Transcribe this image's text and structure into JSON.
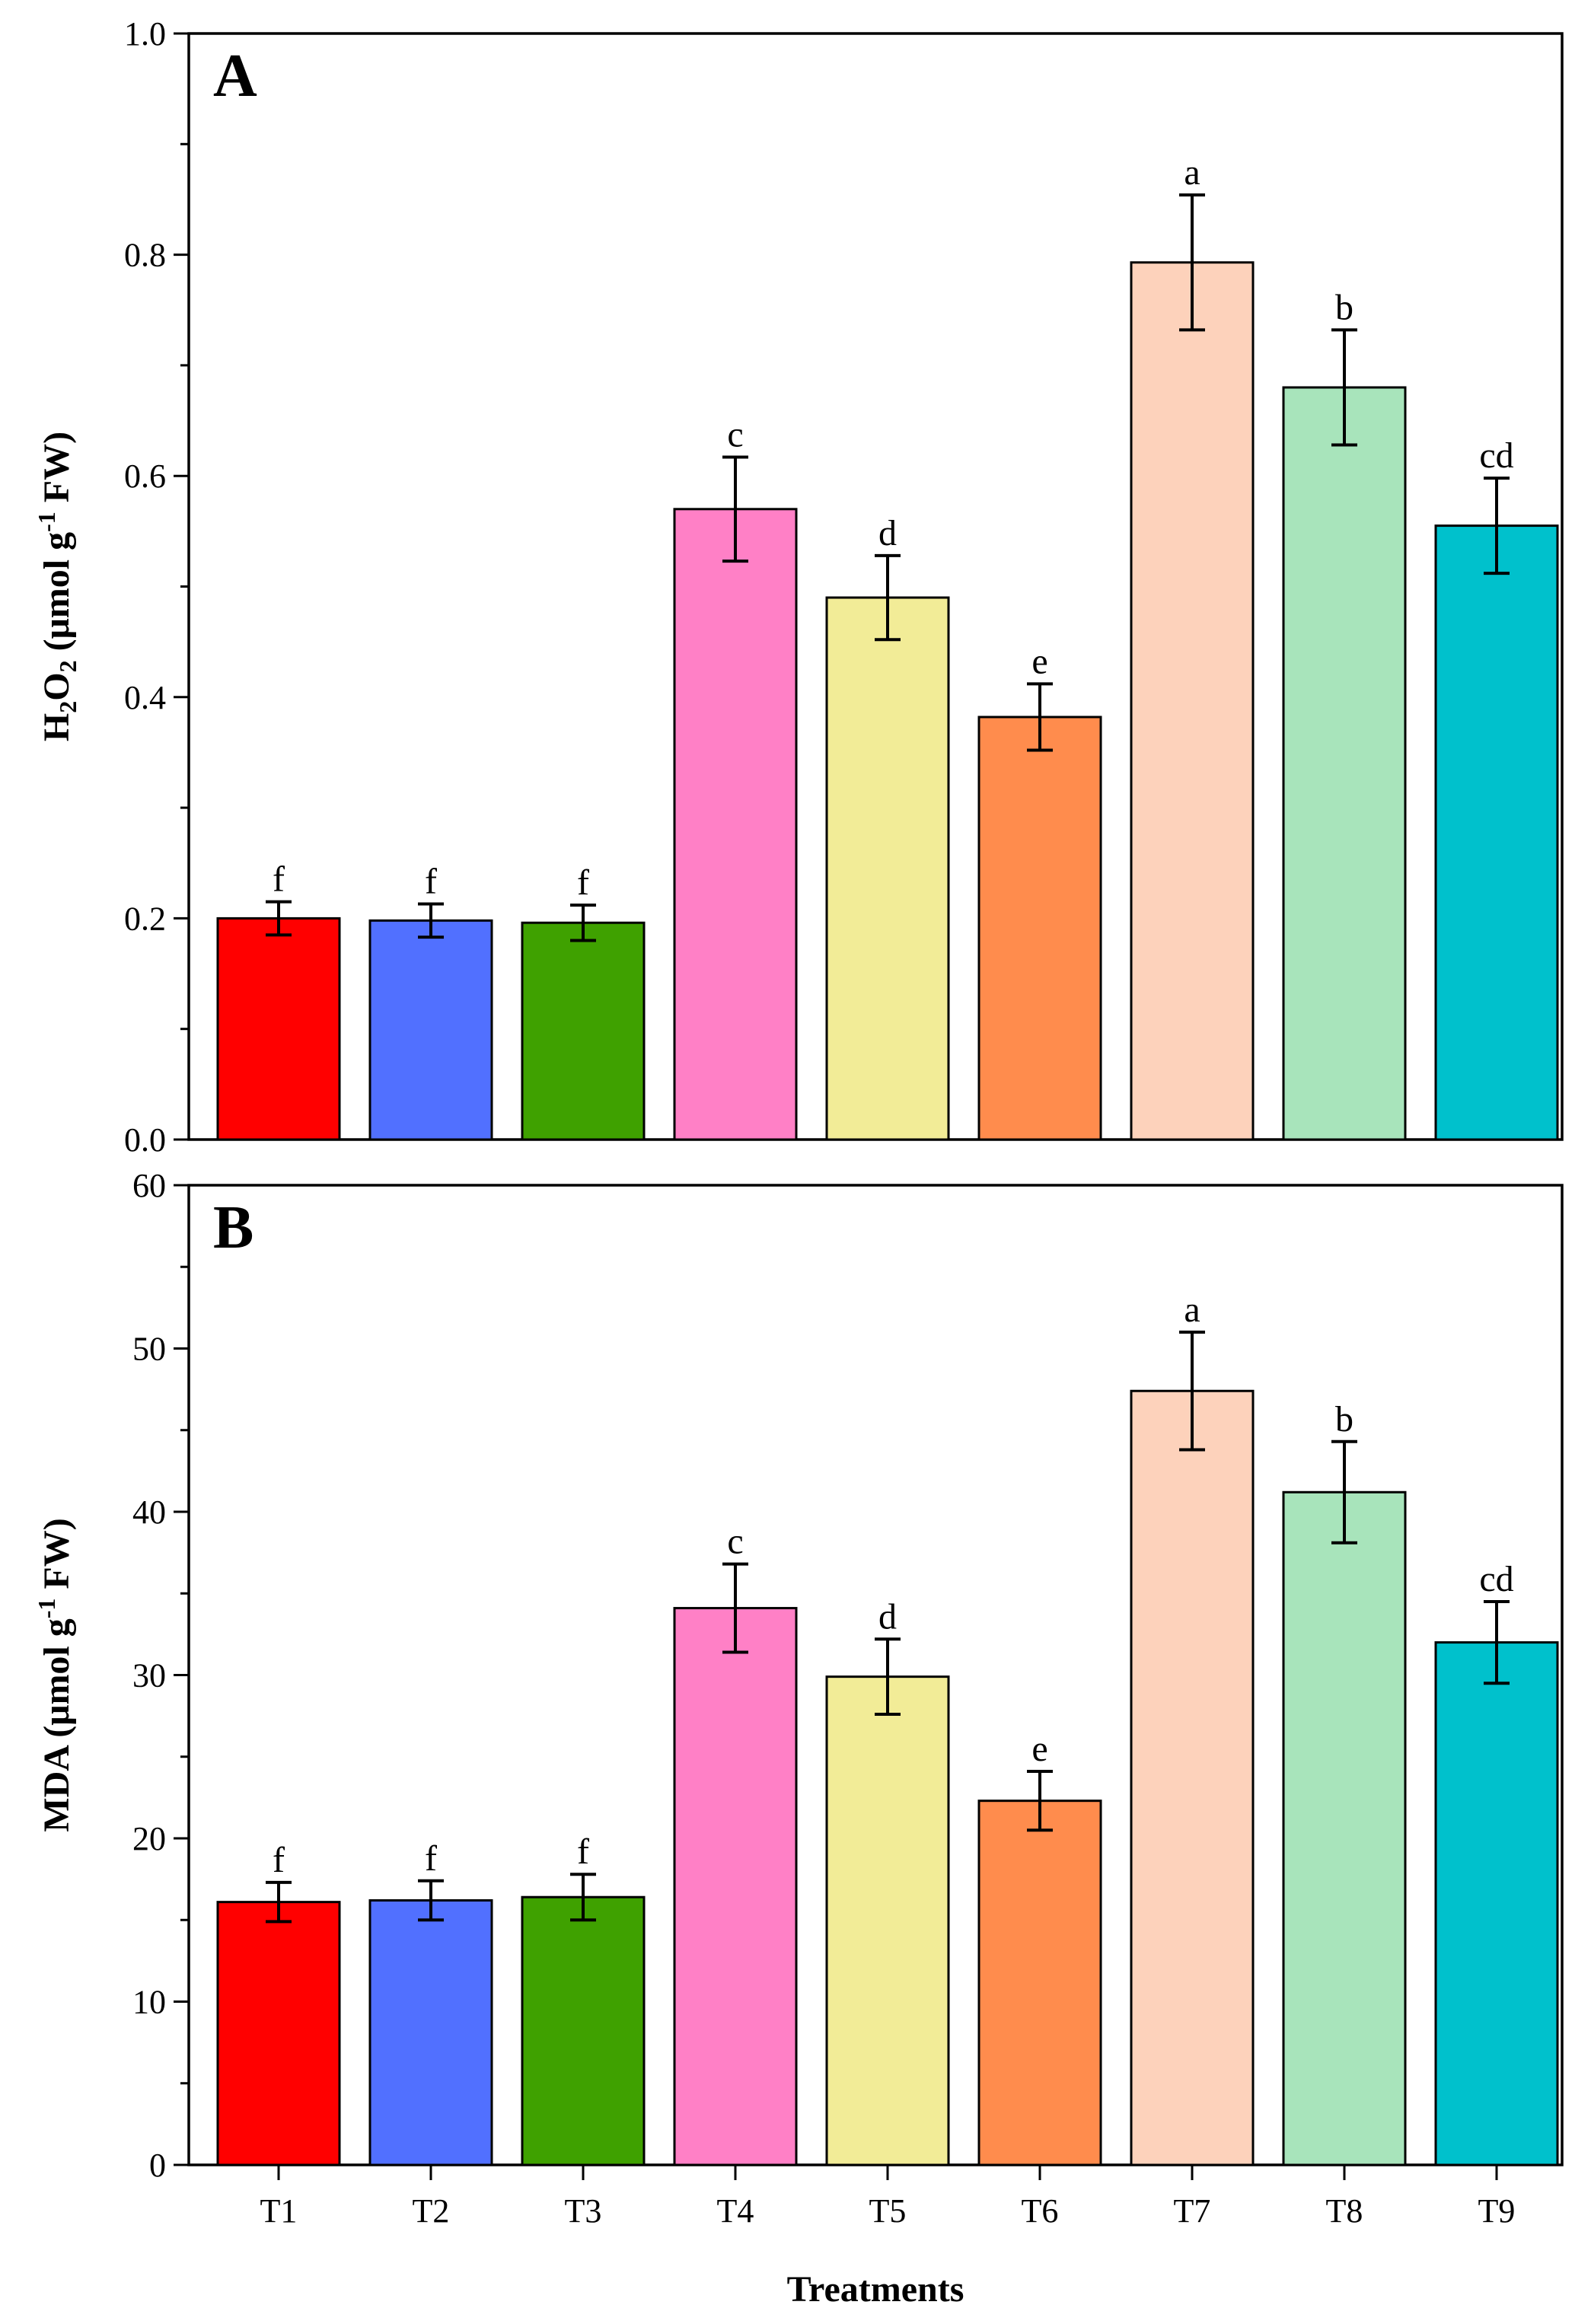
{
  "chart_data": [
    {
      "type": "bar",
      "panel_label": "A",
      "ylabel_parts": [
        "H",
        "2",
        "O",
        "2",
        " (μmol g",
        "-1",
        " FW)"
      ],
      "ylim": [
        0,
        1.0
      ],
      "ytick_step": 0.2,
      "ytick_labels": [
        "0.0",
        "0.2",
        "0.4",
        "0.6",
        "0.8",
        "1.0"
      ],
      "categories": [
        "T1",
        "T2",
        "T3",
        "T4",
        "T5",
        "T6",
        "T7",
        "T8",
        "T9"
      ],
      "values": [
        0.2,
        0.198,
        0.196,
        0.57,
        0.49,
        0.382,
        0.793,
        0.68,
        0.555
      ],
      "errors": [
        0.015,
        0.015,
        0.016,
        0.047,
        0.038,
        0.03,
        0.061,
        0.052,
        0.043
      ],
      "significance": [
        "f",
        "f",
        "f",
        "c",
        "d",
        "e",
        "a",
        "b",
        "cd"
      ],
      "colors": [
        "#ff0000",
        "#5170ff",
        "#3fa100",
        "#ff80c6",
        "#f2ec97",
        "#ff8c4d",
        "#fdd2bb",
        "#a8e4bb",
        "#00c1cc"
      ]
    },
    {
      "type": "bar",
      "panel_label": "B",
      "ylabel_parts": [
        "MDA (μmol g",
        "-1",
        " FW)"
      ],
      "ylim": [
        0,
        60
      ],
      "ytick_step": 10,
      "ytick_labels": [
        "0",
        "10",
        "20",
        "30",
        "40",
        "50",
        "60"
      ],
      "categories": [
        "T1",
        "T2",
        "T3",
        "T4",
        "T5",
        "T6",
        "T7",
        "T8",
        "T9"
      ],
      "values": [
        16.1,
        16.2,
        16.4,
        34.1,
        29.9,
        22.3,
        47.4,
        41.2,
        32.0
      ],
      "errors": [
        1.2,
        1.2,
        1.4,
        2.7,
        2.3,
        1.8,
        3.6,
        3.1,
        2.5
      ],
      "significance": [
        "f",
        "f",
        "f",
        "c",
        "d",
        "e",
        "a",
        "b",
        "cd"
      ],
      "colors": [
        "#ff0000",
        "#5170ff",
        "#3fa100",
        "#ff80c6",
        "#f2ec97",
        "#ff8c4d",
        "#fdd2bb",
        "#a8e4bb",
        "#00c1cc"
      ],
      "xlabel": "Treatments"
    }
  ]
}
